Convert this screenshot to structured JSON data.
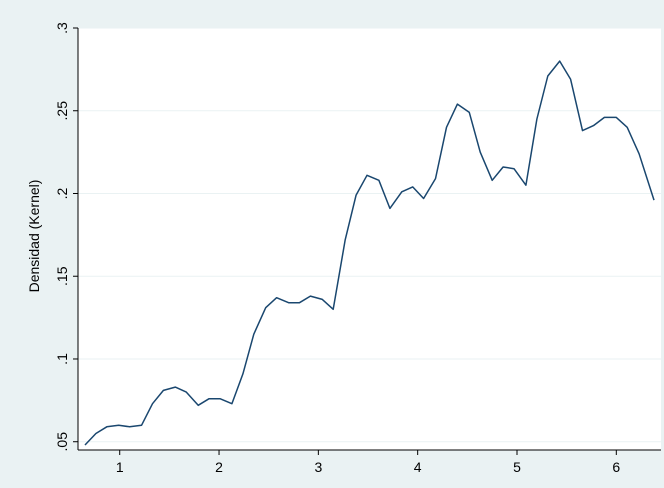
{
  "chart_data": {
    "type": "line",
    "title": "",
    "xlabel": "",
    "ylabel": "Densidad (Kernel)",
    "xlim": [
      0.58,
      6.45
    ],
    "ylim": [
      0.045,
      0.3
    ],
    "x_ticks": [
      1,
      2,
      3,
      4,
      5,
      6
    ],
    "x_tick_labels": [
      "1",
      "2",
      "3",
      "4",
      "5",
      "6"
    ],
    "y_ticks": [
      0.05,
      0.1,
      0.15,
      0.2,
      0.25,
      0.3
    ],
    "y_tick_labels": [
      ".05",
      ".1",
      ".15",
      ".2",
      ".25",
      ".3"
    ],
    "grid": true,
    "colors": {
      "background": "#eaf2f3",
      "plot_area": "#ffffff",
      "grid": "#eaf2f3",
      "line": "#1a476f"
    },
    "series": [
      {
        "x": [
          0.65,
          0.76,
          0.87,
          0.99,
          1.1,
          1.22,
          1.33,
          1.44,
          1.56,
          1.67,
          1.79,
          1.9,
          2.01,
          2.13,
          2.24,
          2.35,
          2.47,
          2.58,
          2.7,
          2.81,
          2.92,
          3.04,
          3.15,
          3.27,
          3.38,
          3.49,
          3.61,
          3.72,
          3.84,
          3.95,
          4.06,
          4.18,
          4.29,
          4.4,
          4.52,
          4.63,
          4.75,
          4.86,
          4.97,
          5.09,
          5.2,
          5.31,
          5.43,
          5.54,
          5.66,
          5.77,
          5.88,
          6.0,
          6.11,
          6.23,
          6.38
        ],
        "y": [
          0.048,
          0.055,
          0.059,
          0.06,
          0.059,
          0.06,
          0.073,
          0.081,
          0.083,
          0.08,
          0.072,
          0.076,
          0.076,
          0.073,
          0.091,
          0.115,
          0.131,
          0.137,
          0.134,
          0.134,
          0.138,
          0.136,
          0.13,
          0.172,
          0.199,
          0.211,
          0.208,
          0.191,
          0.201,
          0.204,
          0.197,
          0.209,
          0.24,
          0.254,
          0.249,
          0.225,
          0.208,
          0.216,
          0.215,
          0.205,
          0.245,
          0.271,
          0.28,
          0.269,
          0.238,
          0.241,
          0.246,
          0.246,
          0.24,
          0.224,
          0.196
        ]
      }
    ]
  }
}
